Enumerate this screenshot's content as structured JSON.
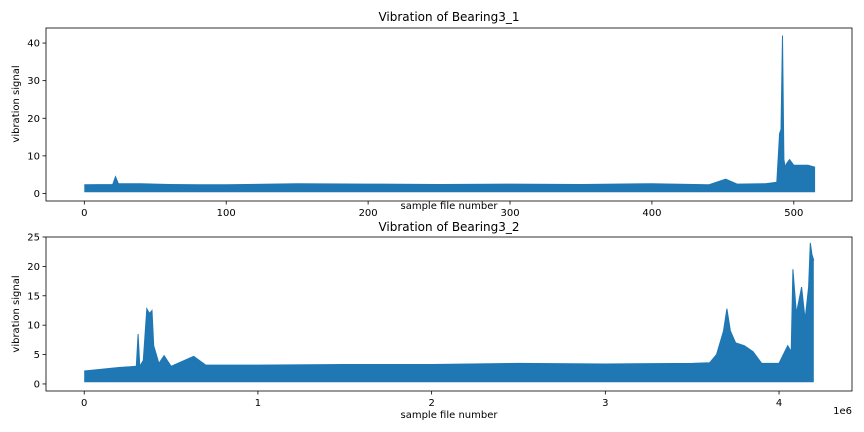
{
  "chart_data": [
    {
      "type": "line",
      "title": "Vibration of Bearing3_1",
      "xlabel": "sample file number",
      "ylabel": "vibration signal",
      "xlim": [
        -27,
        541
      ],
      "ylim": [
        -2,
        44
      ],
      "xticks": [
        0,
        100,
        200,
        300,
        400,
        500
      ],
      "xtick_labels": [
        "0",
        "100",
        "200",
        "300",
        "400",
        "500"
      ],
      "yticks": [
        0,
        10,
        20,
        30,
        40
      ],
      "ytick_labels": [
        "0",
        "10",
        "20",
        "30",
        "40"
      ],
      "offset_text": "",
      "color": "#1f77b4",
      "grid": false,
      "series": [
        {
          "x": [
            0,
            20,
            22,
            24,
            40,
            60,
            80,
            100,
            150,
            200,
            250,
            300,
            350,
            400,
            440,
            452,
            460,
            480,
            488,
            490,
            491,
            492,
            493,
            494,
            495,
            497,
            500,
            505,
            510,
            515
          ],
          "y_max": [
            2.3,
            2.4,
            4.5,
            2.6,
            2.6,
            2.4,
            2.3,
            2.3,
            2.6,
            2.5,
            2.4,
            2.5,
            2.4,
            2.6,
            2.3,
            3.8,
            2.5,
            2.6,
            3.0,
            16,
            17,
            42,
            9,
            7,
            8,
            9,
            7.5,
            7.5,
            7.5,
            7
          ],
          "y_min": [
            0.3,
            0.3,
            0.3,
            0.3,
            0.3,
            0.3,
            0.3,
            0.3,
            0.3,
            0.3,
            0.3,
            0.3,
            0.3,
            0.3,
            0.3,
            0.3,
            0.3,
            0.3,
            0.3,
            0.3,
            0.3,
            0.3,
            0.3,
            0.3,
            0.3,
            0.3,
            0.3,
            0.3,
            0.3,
            0.3
          ]
        }
      ]
    },
    {
      "type": "line",
      "title": "Vibration of Bearing3_2",
      "xlabel": "sample file number",
      "ylabel": "vibration signal",
      "xlim": [
        -220000,
        4420000
      ],
      "ylim": [
        -1.2,
        25
      ],
      "xticks": [
        0,
        1000000,
        2000000,
        3000000,
        4000000
      ],
      "xtick_labels": [
        "0",
        "1",
        "2",
        "3",
        "4"
      ],
      "yticks": [
        0,
        5,
        10,
        15,
        20,
        25
      ],
      "ytick_labels": [
        "0",
        "5",
        "10",
        "15",
        "20",
        "25"
      ],
      "offset_text": "1e6",
      "color": "#1f77b4",
      "grid": false,
      "series": [
        {
          "x": [
            0,
            100000,
            200000,
            300000,
            310000,
            320000,
            340000,
            360000,
            375000,
            390000,
            400000,
            430000,
            460000,
            500000,
            630000,
            700000,
            1000000,
            1500000,
            2000000,
            2500000,
            3000000,
            3500000,
            3600000,
            3640000,
            3680000,
            3700000,
            3720000,
            3750000,
            3800000,
            3850000,
            3900000,
            4000000,
            4050000,
            4070000,
            4080000,
            4100000,
            4130000,
            4150000,
            4170000,
            4180000,
            4190000,
            4200000
          ],
          "y_max": [
            2.2,
            2.5,
            2.8,
            3.0,
            8.5,
            3.0,
            4.0,
            12.8,
            12.0,
            12.5,
            6.5,
            3.5,
            4.8,
            3.0,
            4.7,
            3.2,
            3.2,
            3.3,
            3.3,
            3.5,
            3.4,
            3.5,
            3.6,
            5.0,
            9.0,
            12.8,
            9.0,
            7.0,
            6.5,
            5.5,
            3.5,
            3.5,
            6.5,
            5.5,
            19.5,
            12.0,
            16.5,
            11.0,
            16.5,
            24,
            22,
            21
          ],
          "y_min": [
            0.3,
            0.3,
            0.3,
            0.3,
            0.3,
            0.3,
            0.3,
            0.3,
            0.3,
            0.3,
            0.3,
            0.3,
            0.3,
            0.3,
            0.3,
            0.3,
            0.3,
            0.3,
            0.3,
            0.3,
            0.3,
            0.3,
            0.3,
            0.3,
            0.3,
            0.3,
            0.3,
            0.3,
            0.3,
            0.3,
            0.3,
            0.3,
            0.3,
            0.3,
            0.3,
            0.3,
            0.3,
            0.3,
            0.3,
            0.3,
            0.3,
            0.3
          ]
        }
      ]
    }
  ]
}
